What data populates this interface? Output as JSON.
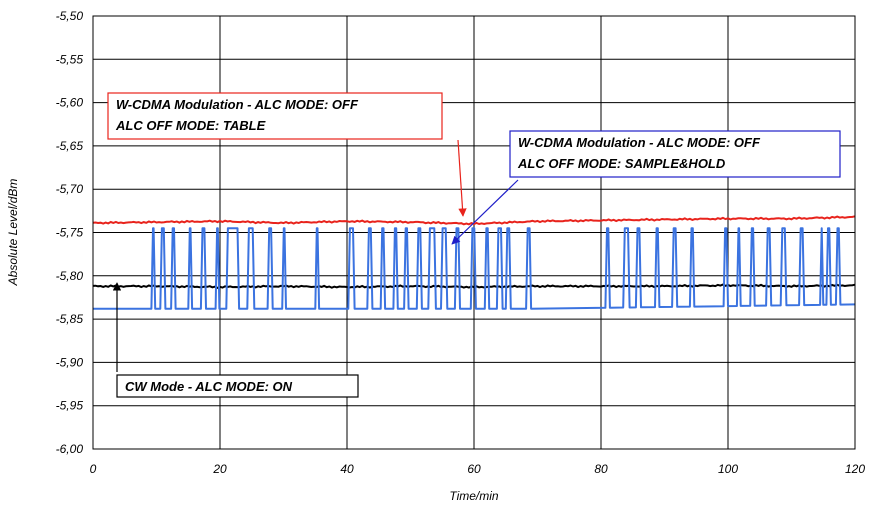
{
  "chart_data": {
    "type": "line",
    "xlabel": "Time/min",
    "ylabel": "Absolute Level/dBm",
    "xlim": [
      0,
      120
    ],
    "ylim": [
      -6.0,
      -5.5
    ],
    "x_ticks": [
      "0",
      "20",
      "40",
      "60",
      "80",
      "100",
      "120"
    ],
    "y_ticks": [
      "-5,50",
      "-5,55",
      "-5,60",
      "-5,65",
      "-5,70",
      "-5,75",
      "-5,80",
      "-5,85",
      "-5,90",
      "-5,95",
      "-6,00"
    ],
    "grid": true,
    "series": [
      {
        "color": "#e8231c",
        "points": [
          [
            0,
            -5.739
          ],
          [
            10,
            -5.738
          ],
          [
            20,
            -5.737
          ],
          [
            30,
            -5.739
          ],
          [
            40,
            -5.737
          ],
          [
            50,
            -5.738
          ],
          [
            60,
            -5.74
          ],
          [
            70,
            -5.737
          ],
          [
            80,
            -5.736
          ],
          [
            90,
            -5.735
          ],
          [
            100,
            -5.734
          ],
          [
            110,
            -5.734
          ],
          [
            120,
            -5.732
          ]
        ]
      },
      {
        "color": "#000000",
        "points": [
          [
            0,
            -5.812
          ],
          [
            10,
            -5.812
          ],
          [
            20,
            -5.813
          ],
          [
            30,
            -5.812
          ],
          [
            40,
            -5.813
          ],
          [
            50,
            -5.812
          ],
          [
            60,
            -5.813
          ],
          [
            70,
            -5.812
          ],
          [
            80,
            -5.812
          ],
          [
            90,
            -5.812
          ],
          [
            100,
            -5.811
          ],
          [
            110,
            -5.812
          ],
          [
            120,
            -5.811
          ]
        ]
      },
      {
        "color": "#3b73e0",
        "baseline": -5.838,
        "end_baseline": -5.833,
        "high": -5.745,
        "pulses": [
          [
            9.2,
            9.8
          ],
          [
            10.6,
            11.4
          ],
          [
            12.3,
            13.0
          ],
          [
            15.0,
            15.6
          ],
          [
            17.0,
            17.8
          ],
          [
            19.3,
            19.9
          ],
          [
            21.0,
            23.0
          ],
          [
            24.3,
            25.4
          ],
          [
            27.5,
            28.3
          ],
          [
            29.8,
            30.4
          ],
          [
            35.0,
            35.6
          ],
          [
            40.2,
            41.2
          ],
          [
            43.2,
            44.0
          ],
          [
            45.3,
            46.0
          ],
          [
            47.3,
            48.0
          ],
          [
            49.0,
            49.7
          ],
          [
            51.0,
            51.8
          ],
          [
            52.8,
            54.0
          ],
          [
            54.8,
            55.8
          ],
          [
            57.0,
            57.8
          ],
          [
            59.5,
            60.3
          ],
          [
            61.7,
            62.4
          ],
          [
            63.6,
            64.5
          ],
          [
            65.0,
            65.8
          ],
          [
            68.2,
            69.0
          ],
          [
            80.7,
            81.4
          ],
          [
            83.5,
            84.5
          ],
          [
            85.5,
            86.3
          ],
          [
            88.5,
            89.2
          ],
          [
            91.2,
            92.0
          ],
          [
            94.0,
            94.7
          ],
          [
            99.3,
            100.0
          ],
          [
            101.4,
            102.0
          ],
          [
            103.5,
            104.2
          ],
          [
            106.0,
            106.8
          ],
          [
            108.3,
            109.2
          ],
          [
            111.2,
            112.0
          ],
          [
            114.5,
            115.0
          ],
          [
            115.5,
            116.2
          ],
          [
            117.0,
            117.7
          ]
        ]
      }
    ],
    "annotations": [
      {
        "lines": [
          "W-CDMA Modulation - ALC MODE: OFF",
          "ALC OFF MODE: TABLE"
        ],
        "border": "#e8231c",
        "arrow": "#e8231c"
      },
      {
        "lines": [
          "W-CDMA Modulation - ALC MODE: OFF",
          "ALC OFF MODE: SAMPLE&HOLD"
        ],
        "border": "#1f1fc8",
        "arrow": "#1f1fc8"
      },
      {
        "lines": [
          "CW Mode - ALC MODE: ON"
        ],
        "border": "#000000",
        "arrow": "#000000"
      }
    ]
  }
}
